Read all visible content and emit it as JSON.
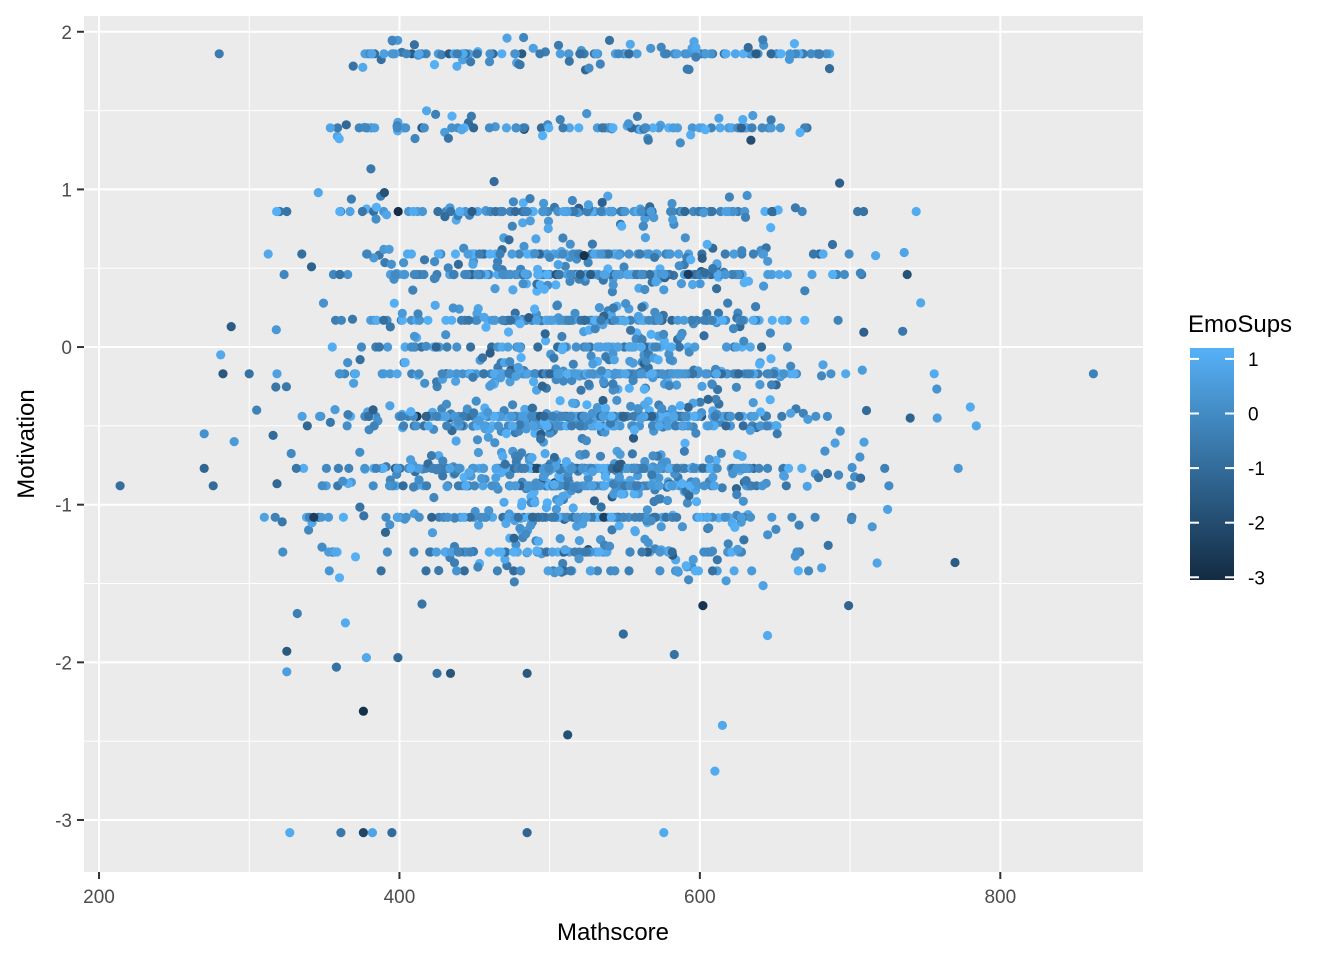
{
  "chart_data": {
    "type": "scatter",
    "title": "",
    "xlabel": "Mathscore",
    "ylabel": "Motivation",
    "xlim": [
      190,
      895
    ],
    "ylim": [
      -3.33,
      2.1
    ],
    "x_ticks": [
      200,
      400,
      600,
      800
    ],
    "y_ticks": [
      2,
      1,
      0,
      -1,
      -2,
      -3
    ],
    "x_tick_labels": [
      "200",
      "400",
      "600",
      "800"
    ],
    "y_tick_labels": [
      "2",
      "1",
      "0",
      "-1",
      "-2",
      "-3"
    ],
    "grid": true,
    "background": "#ebebeb",
    "legend": {
      "title": "EmoSups",
      "position": "right",
      "range": [
        -3.05,
        1.2
      ],
      "breaks": [
        1,
        0,
        -1,
        -2,
        -3
      ],
      "break_labels": [
        "1",
        "0",
        "-1",
        "-2",
        "-3"
      ],
      "low_color": "#132b43",
      "high_color": "#56b1f7"
    },
    "motivation_levels": [
      1.86,
      1.39,
      0.86,
      0.59,
      0.46,
      0.17,
      0.0,
      -0.17,
      -0.44,
      -0.5,
      -0.77,
      -0.88,
      -1.08,
      -1.3,
      -1.42
    ],
    "points": [
      {
        "x": 214,
        "y": -0.88,
        "c": -0.9
      },
      {
        "x": 280,
        "y": 1.86,
        "c": -0.5
      },
      {
        "x": 281,
        "y": -0.05,
        "c": 0.9
      },
      {
        "x": 288,
        "y": 0.13,
        "c": -1.5
      },
      {
        "x": 270,
        "y": -0.55,
        "c": 0.2
      },
      {
        "x": 276,
        "y": -0.88,
        "c": -1.0
      },
      {
        "x": 270,
        "y": -0.77,
        "c": -1.2
      },
      {
        "x": 290,
        "y": -0.6,
        "c": 0.5
      },
      {
        "x": 300,
        "y": -0.17,
        "c": -0.8
      },
      {
        "x": 305,
        "y": -0.4,
        "c": -0.3
      },
      {
        "x": 310,
        "y": -1.08,
        "c": 0.7
      },
      {
        "x": 318,
        "y": 0.11,
        "c": 0.4
      },
      {
        "x": 325,
        "y": 0.86,
        "c": -0.7
      },
      {
        "x": 325,
        "y": -1.93,
        "c": -1.6
      },
      {
        "x": 325,
        "y": -2.06,
        "c": 0.6
      },
      {
        "x": 327,
        "y": -3.08,
        "c": 1.0
      },
      {
        "x": 335,
        "y": 0.59,
        "c": -0.9
      },
      {
        "x": 332,
        "y": -1.69,
        "c": -0.4
      },
      {
        "x": 346,
        "y": 0.98,
        "c": 0.9
      },
      {
        "x": 343,
        "y": -1.08,
        "c": -2.4
      },
      {
        "x": 354,
        "y": 1.39,
        "c": 0.8
      },
      {
        "x": 358,
        "y": -2.03,
        "c": -0.8
      },
      {
        "x": 361,
        "y": -3.08,
        "c": -0.6
      },
      {
        "x": 364,
        "y": -1.75,
        "c": 1.0
      },
      {
        "x": 376,
        "y": -2.31,
        "c": -2.9
      },
      {
        "x": 376,
        "y": -3.08,
        "c": -2.2
      },
      {
        "x": 382,
        "y": -3.08,
        "c": 0.8
      },
      {
        "x": 378,
        "y": -1.97,
        "c": 0.9
      },
      {
        "x": 381,
        "y": 1.13,
        "c": -0.6
      },
      {
        "x": 390,
        "y": 0.98,
        "c": -1.8
      },
      {
        "x": 395,
        "y": -3.08,
        "c": -1.0
      },
      {
        "x": 399,
        "y": -1.97,
        "c": -1.1
      },
      {
        "x": 415,
        "y": -1.63,
        "c": -0.7
      },
      {
        "x": 425,
        "y": -2.07,
        "c": -0.9
      },
      {
        "x": 434,
        "y": -2.07,
        "c": -1.7
      },
      {
        "x": 463,
        "y": 1.05,
        "c": -1.0
      },
      {
        "x": 485,
        "y": -3.08,
        "c": -1.2
      },
      {
        "x": 485,
        "y": -2.07,
        "c": -1.6
      },
      {
        "x": 512,
        "y": -2.46,
        "c": -1.9
      },
      {
        "x": 523,
        "y": 0.58,
        "c": -2.8
      },
      {
        "x": 549,
        "y": -1.82,
        "c": -1.0
      },
      {
        "x": 576,
        "y": -3.08,
        "c": 1.0
      },
      {
        "x": 583,
        "y": -1.95,
        "c": -0.8
      },
      {
        "x": 602,
        "y": -1.64,
        "c": -2.8
      },
      {
        "x": 610,
        "y": -2.69,
        "c": 1.0
      },
      {
        "x": 615,
        "y": -2.4,
        "c": 0.9
      },
      {
        "x": 645,
        "y": -1.83,
        "c": 1.0
      },
      {
        "x": 693,
        "y": 1.04,
        "c": -1.4
      },
      {
        "x": 699,
        "y": -1.64,
        "c": -1.2
      },
      {
        "x": 709,
        "y": 0.86,
        "c": -0.8
      },
      {
        "x": 717,
        "y": 0.58,
        "c": 0.9
      },
      {
        "x": 718,
        "y": -1.37,
        "c": 0.8
      },
      {
        "x": 725,
        "y": -1.03,
        "c": 0.7
      },
      {
        "x": 735,
        "y": 0.1,
        "c": -0.6
      },
      {
        "x": 736,
        "y": 0.6,
        "c": 0.8
      },
      {
        "x": 738,
        "y": 0.46,
        "c": -1.8
      },
      {
        "x": 740,
        "y": -0.45,
        "c": -1.3
      },
      {
        "x": 744,
        "y": 0.86,
        "c": 1.0
      },
      {
        "x": 747,
        "y": 0.28,
        "c": 0.9
      },
      {
        "x": 756,
        "y": -0.17,
        "c": 1.0
      },
      {
        "x": 758,
        "y": -0.45,
        "c": 0.6
      },
      {
        "x": 772,
        "y": -0.77,
        "c": 0.4
      },
      {
        "x": 780,
        "y": -0.38,
        "c": 1.0
      },
      {
        "x": 784,
        "y": -0.5,
        "c": 0.9
      },
      {
        "x": 862,
        "y": -0.17,
        "c": -0.3
      }
    ]
  }
}
